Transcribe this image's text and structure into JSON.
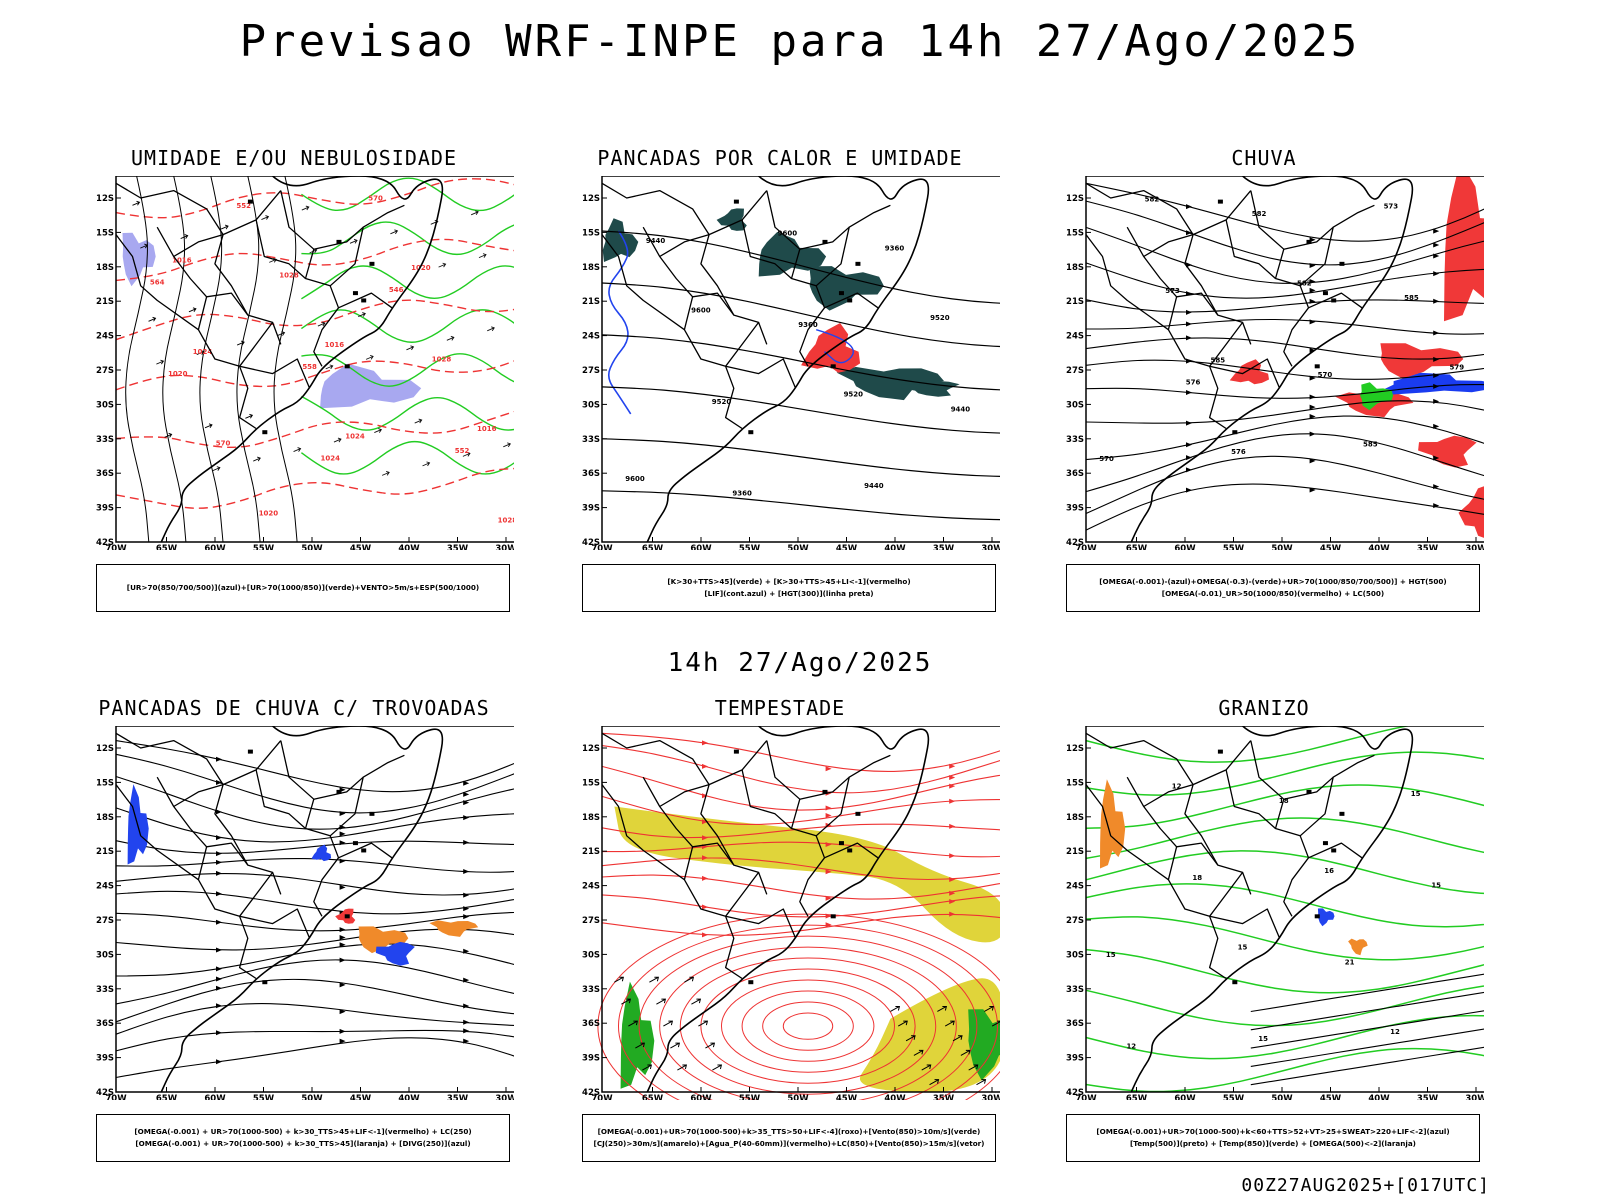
{
  "title": "Previsao WRF-INPE  para 14h 27/Ago/2025",
  "mid_title": "14h 27/Ago/2025",
  "footer": "00Z27AUG2025+[017UTC]",
  "axes": {
    "lat_labels": [
      "12S",
      "15S",
      "18S",
      "21S",
      "24S",
      "27S",
      "30S",
      "33S",
      "36S",
      "39S",
      "42S"
    ],
    "lon_labels": [
      "70W",
      "65W",
      "60W",
      "55W",
      "50W",
      "45W",
      "40W",
      "35W",
      "30W"
    ]
  },
  "panels": [
    {
      "id": "umidade",
      "title": "UMIDADE E/OU NEBULOSIDADE",
      "legend": [
        "[UR>70(850/700/500)](azul)+[UR>70(1000/850)](verde)+VENTO>5m/s+ESP(500/1000)"
      ],
      "contour_labels": [
        "1016",
        "1016",
        "1016",
        "1020",
        "1020",
        "1024",
        "1024",
        "1028",
        "1028",
        "1028",
        "570",
        "570",
        "564",
        "558",
        "552",
        "552",
        "546",
        "1020",
        "1024"
      ]
    },
    {
      "id": "pancadas-calor",
      "title": "PANCADAS POR CALOR E UMIDADE",
      "legend": [
        "[K>30+TTS>45](verde) + [K>30+TTS>45+LI<-1](vermelho)",
        "[LIF](cont.azul) + [HGT(300)](linha preta)"
      ],
      "contour_labels": [
        "9600",
        "9520",
        "9600",
        "9600",
        "9520",
        "9520",
        "9440",
        "9440",
        "9360",
        "9440",
        "9360",
        "9360"
      ]
    },
    {
      "id": "chuva",
      "title": "CHUVA",
      "legend": [
        "[OMEGA(-0.001)-(azul)+OMEGA(-0.3)-(verde)+UR>70(1000/850/700/500)] + HGT(500)",
        "[OMEGA(-0.01)_UR>50(1000/850)(vermelho) + LC(500)"
      ],
      "contour_labels": [
        "585",
        "585",
        "582",
        "582",
        "579",
        "576",
        "573",
        "573",
        "570",
        "570",
        "582",
        "585",
        "576"
      ]
    },
    {
      "id": "pancadas-trovoadas",
      "title": "PANCADAS DE CHUVA C/ TROVOADAS",
      "legend": [
        "[OMEGA(-0.001) + UR>70(1000-500) + k>30_TTS>45+LIF<-1](vermelho) + LC(250)",
        "[OMEGA(-0.001) + UR>70(1000-500) + k>30_TTS>45](laranja) + [DIVG(250)](azul)"
      ]
    },
    {
      "id": "tempestade",
      "title": "TEMPESTADE",
      "legend": [
        "[OMEGA(-0.001)+UR>70(1000-500)+k>35_TTS>50+LIF<-4](roxo)+[Vento(850)>10m/s](verde)",
        "[CJ(250)>30m/s](amarelo)+[Agua_P(40-60mm)](vermelho)+LC(850)+[Vento(850)>15m/s](vetor)"
      ]
    },
    {
      "id": "granizo",
      "title": "GRANIZO",
      "legend": [
        "[OMEGA(-0.001)+UR>70(1000-500)+k<60+TTS>52+VT>25+SWEAT>220+LIF<-2](azul)",
        "[Temp(500)](preto) + [Temp(850)](verde) + [OMEGA(500)<-2](laranja)"
      ],
      "contour_labels": [
        "15",
        "12",
        "12",
        "16",
        "15",
        "15",
        "15",
        "18",
        "21",
        "12",
        "18",
        "15"
      ]
    }
  ],
  "colors": {
    "humid_blue": "#a8a8f0",
    "humid_green": "#22cc22",
    "contour_red": "#ee3333",
    "instab_teal": "#1f4a4a",
    "lif_blue": "#2244ee",
    "rain_red": "#f03838",
    "rain_blue": "#1a3cf0",
    "rain_green": "#22cc22",
    "orange": "#f08a2a",
    "jet_yellow": "#e0d43a",
    "wind_green": "#22aa22"
  }
}
